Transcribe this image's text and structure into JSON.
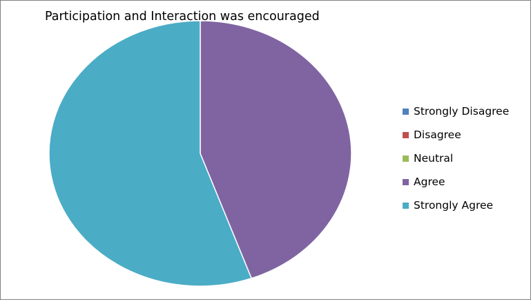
{
  "chart_data": {
    "type": "pie",
    "title": "Participation and Interaction was encouraged",
    "categories": [
      "Strongly Disagree",
      "Disagree",
      "Neutral",
      "Agree",
      "Strongly Agree"
    ],
    "values": [
      0,
      0,
      0,
      44.5,
      55.5
    ],
    "colors": [
      "#4f81bd",
      "#c0504d",
      "#9bbb59",
      "#8064a2",
      "#4bacc6"
    ],
    "legend_position": "right"
  }
}
